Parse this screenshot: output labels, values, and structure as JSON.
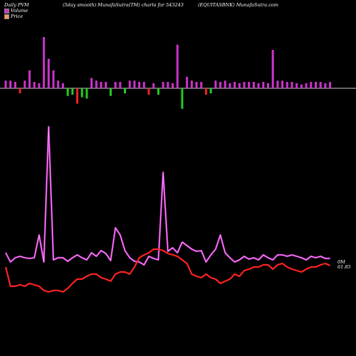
{
  "header": {
    "left": "Daily PVM",
    "middle": "(5day smooth) MunafaSutra(TM) charts for 543243",
    "right": "(EQUITASBNK) MunafaSutra.com"
  },
  "legend": [
    {
      "label": "Volume",
      "color": "#cc33cc"
    },
    {
      "label": "Price",
      "color": "#ff9966"
    }
  ],
  "end_labels": {
    "volume": "0M",
    "price": "61.85"
  },
  "chart_data": {
    "type": "bar+line",
    "volume_bars": [
      {
        "v": 6,
        "dir": "up"
      },
      {
        "v": 6,
        "dir": "up"
      },
      {
        "v": 5,
        "dir": "up"
      },
      {
        "v": -4,
        "dir": "down"
      },
      {
        "v": 6,
        "dir": "up"
      },
      {
        "v": 14,
        "dir": "up"
      },
      {
        "v": 5,
        "dir": "up"
      },
      {
        "v": 4,
        "dir": "up"
      },
      {
        "v": 40,
        "dir": "up"
      },
      {
        "v": 23,
        "dir": "up"
      },
      {
        "v": 14,
        "dir": "up"
      },
      {
        "v": 6,
        "dir": "up"
      },
      {
        "v": 4,
        "dir": "up"
      },
      {
        "v": -6,
        "dir": "down"
      },
      {
        "v": -5,
        "dir": "down"
      },
      {
        "v": -12,
        "dir": "down"
      },
      {
        "v": -7,
        "dir": "down"
      },
      {
        "v": -8,
        "dir": "down"
      },
      {
        "v": 8,
        "dir": "up"
      },
      {
        "v": 6,
        "dir": "up"
      },
      {
        "v": 5,
        "dir": "up"
      },
      {
        "v": 5,
        "dir": "up"
      },
      {
        "v": -6,
        "dir": "down"
      },
      {
        "v": 5,
        "dir": "up"
      },
      {
        "v": 5,
        "dir": "up"
      },
      {
        "v": -4,
        "dir": "down"
      },
      {
        "v": 6,
        "dir": "up"
      },
      {
        "v": 6,
        "dir": "up"
      },
      {
        "v": 5,
        "dir": "up"
      },
      {
        "v": 5,
        "dir": "up"
      },
      {
        "v": -5,
        "dir": "down"
      },
      {
        "v": 4,
        "dir": "up"
      },
      {
        "v": -5,
        "dir": "down"
      },
      {
        "v": 5,
        "dir": "up"
      },
      {
        "v": 5,
        "dir": "up"
      },
      {
        "v": 4,
        "dir": "up"
      },
      {
        "v": 34,
        "dir": "up"
      },
      {
        "v": -16,
        "dir": "down"
      },
      {
        "v": 9,
        "dir": "up"
      },
      {
        "v": 6,
        "dir": "up"
      },
      {
        "v": 5,
        "dir": "up"
      },
      {
        "v": 5,
        "dir": "up"
      },
      {
        "v": -5,
        "dir": "down"
      },
      {
        "v": -4,
        "dir": "down"
      },
      {
        "v": 6,
        "dir": "up"
      },
      {
        "v": 5,
        "dir": "up"
      },
      {
        "v": 6,
        "dir": "up"
      },
      {
        "v": 4,
        "dir": "up"
      },
      {
        "v": 5,
        "dir": "up"
      },
      {
        "v": 4,
        "dir": "up"
      },
      {
        "v": 5,
        "dir": "up"
      },
      {
        "v": 5,
        "dir": "up"
      },
      {
        "v": 5,
        "dir": "up"
      },
      {
        "v": 4,
        "dir": "up"
      },
      {
        "v": 5,
        "dir": "up"
      },
      {
        "v": 4,
        "dir": "up"
      },
      {
        "v": 30,
        "dir": "up"
      },
      {
        "v": 6,
        "dir": "up"
      },
      {
        "v": 6,
        "dir": "up"
      },
      {
        "v": 5,
        "dir": "up"
      },
      {
        "v": 5,
        "dir": "up"
      },
      {
        "v": 4,
        "dir": "up"
      },
      {
        "v": 3,
        "dir": "up"
      },
      {
        "v": 4,
        "dir": "up"
      },
      {
        "v": 5,
        "dir": "up"
      },
      {
        "v": 5,
        "dir": "up"
      },
      {
        "v": 5,
        "dir": "up"
      },
      {
        "v": 4,
        "dir": "up"
      },
      {
        "v": 5,
        "dir": "up"
      }
    ],
    "volume_line": [
      355,
      368,
      362,
      360,
      362,
      363,
      362,
      330,
      368,
      178,
      365,
      362,
      362,
      367,
      362,
      358,
      362,
      365,
      355,
      360,
      352,
      356,
      366,
      320,
      330,
      352,
      362,
      367,
      368,
      372,
      360,
      363,
      365,
      242,
      353,
      348,
      355,
      340,
      345,
      350,
      353,
      352,
      368,
      358,
      350,
      330,
      355,
      362,
      368,
      365,
      360,
      364,
      362,
      365,
      358,
      362,
      365,
      358,
      358,
      360,
      358,
      360,
      362,
      365,
      360,
      362,
      360,
      363,
      363
    ],
    "price_line": [
      375,
      402,
      402,
      400,
      402,
      398,
      400,
      402,
      408,
      410,
      408,
      408,
      410,
      405,
      398,
      392,
      392,
      388,
      385,
      385,
      390,
      392,
      395,
      385,
      382,
      382,
      385,
      375,
      362,
      358,
      355,
      350,
      350,
      352,
      356,
      358,
      360,
      365,
      370,
      385,
      388,
      390,
      385,
      390,
      392,
      398,
      395,
      392,
      385,
      388,
      380,
      378,
      375,
      375,
      372,
      372,
      378,
      372,
      370,
      375,
      378,
      380,
      382,
      378,
      375,
      375,
      372,
      370,
      373
    ]
  }
}
